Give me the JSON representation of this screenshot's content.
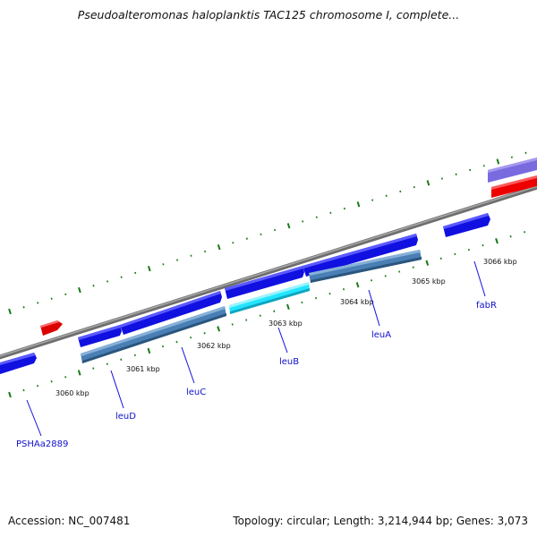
{
  "title": "Pseudoalteromonas haloplanktis TAC125 chromosome I, complete...",
  "footer": {
    "accession": "Accession: NC_007481",
    "topology": "Topology: circular; Length: 3,214,944 bp; Genes: 3,073"
  },
  "scale_labels": [
    "3060 kbp",
    "3061 kbp",
    "3062 kbp",
    "3063 kbp",
    "3064 kbp",
    "3065 kbp",
    "3066 kbp"
  ],
  "gene_labels": [
    "PSHAa2889",
    "leuD",
    "leuC",
    "leuB",
    "leuA",
    "fabR"
  ],
  "colors": {
    "backbone": "#8a8a8a",
    "ticks": "#1a7a1a",
    "gene_forward": "#1010e0",
    "gene_reverse": "#1010e0",
    "cds_blue": "#4a7fb5",
    "cds_cyan": "#22e5ff",
    "red_feature": "#ee0000",
    "purple_feature": "#7a6ae0",
    "label": "#1010cc"
  }
}
